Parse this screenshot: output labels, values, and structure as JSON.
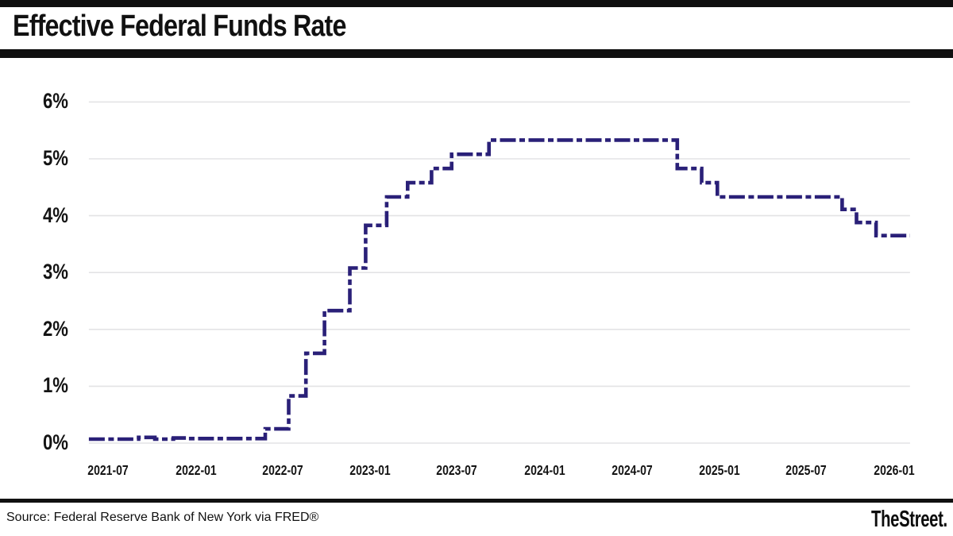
{
  "header": {
    "title": "Effective Federal Funds Rate"
  },
  "footer": {
    "source": "Source: Federal Reserve Bank of New York via FRED®",
    "brand": "TheStreet."
  },
  "chart_data": {
    "type": "line",
    "title": "Effective Federal Funds Rate",
    "xlabel": "",
    "ylabel": "",
    "unit": "%",
    "line_style": "dashed-step",
    "line_color": "#2a2078",
    "grid_color": "#e3e3e5",
    "legend": "none",
    "ylim": [
      0,
      6.2
    ],
    "y_ticks": [
      {
        "label": "0%",
        "value": 0
      },
      {
        "label": "1%",
        "value": 1
      },
      {
        "label": "2%",
        "value": 2
      },
      {
        "label": "3%",
        "value": 3
      },
      {
        "label": "4%",
        "value": 4
      },
      {
        "label": "5%",
        "value": 5
      },
      {
        "label": "6%",
        "value": 6
      }
    ],
    "x_ticks": [
      {
        "label": "2021-07",
        "date": "2021-07-01"
      },
      {
        "label": "2022-01",
        "date": "2022-01-01"
      },
      {
        "label": "2022-07",
        "date": "2022-07-01"
      },
      {
        "label": "2023-01",
        "date": "2023-01-01"
      },
      {
        "label": "2023-07",
        "date": "2023-07-01"
      },
      {
        "label": "2024-01",
        "date": "2024-01-01"
      },
      {
        "label": "2024-07",
        "date": "2024-07-01"
      },
      {
        "label": "2025-01",
        "date": "2025-01-01"
      },
      {
        "label": "2025-07",
        "date": "2025-07-01"
      },
      {
        "label": "2026-01",
        "date": "2026-01-01"
      }
    ],
    "x_start": "2021-05-22",
    "x_end": "2026-02-03",
    "steps": [
      [
        "2021-05-22",
        0.07
      ],
      [
        "2021-09-03",
        0.1
      ],
      [
        "2021-10-07",
        0.07
      ],
      [
        "2021-11-15",
        0.09
      ],
      [
        "2021-12-15",
        0.08
      ],
      [
        "2022-05-26",
        0.25
      ],
      [
        "2022-07-14",
        0.83
      ],
      [
        "2022-08-19",
        1.58
      ],
      [
        "2022-09-27",
        2.33
      ],
      [
        "2022-11-19",
        3.08
      ],
      [
        "2022-12-22",
        3.83
      ],
      [
        "2023-02-04",
        4.33
      ],
      [
        "2023-03-20",
        4.58
      ],
      [
        "2023-05-09",
        4.83
      ],
      [
        "2023-06-20",
        5.08
      ],
      [
        "2023-09-06",
        5.33
      ],
      [
        "2024-10-04",
        4.83
      ],
      [
        "2024-11-24",
        4.58
      ],
      [
        "2024-12-27",
        4.33
      ],
      [
        "2025-09-14",
        4.11
      ],
      [
        "2025-10-14",
        3.88
      ],
      [
        "2025-11-24",
        3.65
      ]
    ]
  }
}
